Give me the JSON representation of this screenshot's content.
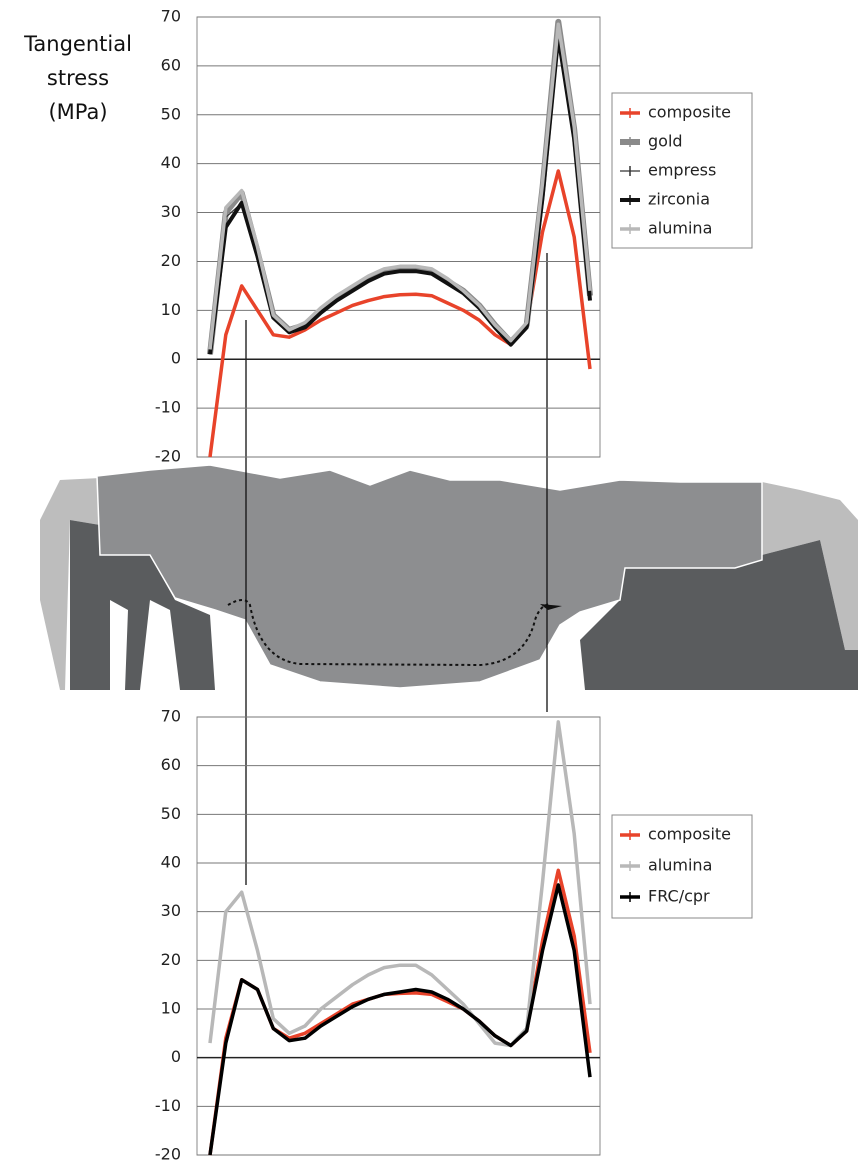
{
  "chart_data": [
    {
      "type": "line",
      "ylabel": [
        "Tangential",
        "stress",
        "(MPa)"
      ],
      "categories": [
        null,
        null,
        null,
        null,
        null,
        null,
        null,
        null,
        null,
        null,
        null,
        null,
        null,
        null,
        null,
        null,
        null,
        null,
        null,
        null,
        null,
        null,
        null,
        null,
        null
      ],
      "ylim": [
        -20,
        70
      ],
      "yticks": [
        -20,
        -10,
        0,
        10,
        20,
        30,
        40,
        50,
        60,
        70
      ],
      "grid": true,
      "series": [
        {
          "name": "composite",
          "color": "#e8432a",
          "line_width": 3.5,
          "values": [
            -20,
            5,
            15,
            10,
            5,
            4.5,
            6,
            8,
            9.5,
            11,
            12,
            12.8,
            13.2,
            13.3,
            13,
            11.5,
            10,
            8,
            5,
            3,
            7,
            26,
            38.5,
            25,
            -2
          ]
        },
        {
          "name": "gold",
          "color": "#8a8a8a",
          "line_width": 6,
          "values": [
            1,
            30,
            34,
            22,
            9,
            6,
            7,
            10,
            12.5,
            14.5,
            16.5,
            18,
            18.5,
            18.5,
            18,
            16,
            14,
            11,
            7,
            3.5,
            7,
            35,
            69,
            47,
            13
          ]
        },
        {
          "name": "empress",
          "color": "#333333",
          "line_width": 1.2,
          "values": [
            1,
            29,
            32,
            21,
            8.5,
            5.5,
            7,
            9.8,
            12.2,
            14.2,
            16.2,
            17.7,
            18.2,
            18.2,
            17.7,
            15.7,
            13.7,
            10.7,
            6.8,
            3.2,
            6.8,
            34,
            68,
            46,
            12.5
          ]
        },
        {
          "name": "zirconia",
          "color": "#111111",
          "line_width": 4,
          "values": [
            1,
            27,
            32,
            21,
            8.5,
            5.5,
            6.5,
            9.5,
            12,
            14,
            16,
            17.5,
            18,
            18,
            17.5,
            15.5,
            13.5,
            10.5,
            6.5,
            3,
            6.5,
            33,
            66,
            45,
            12
          ]
        },
        {
          "name": "alumina",
          "color": "#b8b8b8",
          "line_width": 3.5,
          "values": [
            2,
            31,
            34.5,
            23,
            9,
            6,
            7.5,
            10.5,
            13,
            15,
            17,
            18.5,
            19,
            19,
            18.5,
            16.5,
            14,
            11,
            7,
            3.8,
            7.5,
            36,
            68.5,
            47.5,
            14
          ]
        }
      ],
      "legend": "right"
    },
    {
      "type": "line",
      "categories": [
        null,
        null,
        null,
        null,
        null,
        null,
        null,
        null,
        null,
        null,
        null,
        null,
        null,
        null,
        null,
        null,
        null,
        null,
        null,
        null,
        null,
        null,
        null,
        null,
        null
      ],
      "ylim": [
        -20,
        70
      ],
      "yticks": [
        -20,
        -10,
        0,
        10,
        20,
        30,
        40,
        50,
        60,
        70
      ],
      "grid": true,
      "series": [
        {
          "name": "composite",
          "color": "#e8432a",
          "line_width": 3.5,
          "values": [
            -20,
            4,
            16,
            14,
            6,
            4,
            5,
            7,
            9,
            11,
            12,
            13,
            13.2,
            13.3,
            13,
            11.5,
            10,
            7.5,
            4.5,
            2.5,
            5.5,
            24,
            38.5,
            25,
            1
          ]
        },
        {
          "name": "alumina",
          "color": "#b8b8b8",
          "line_width": 3.5,
          "values": [
            3,
            30,
            34,
            22,
            8,
            5,
            6.5,
            10,
            12.5,
            15,
            17,
            18.5,
            19,
            19,
            17,
            14,
            11,
            7,
            3,
            2.5,
            6,
            36,
            69,
            46,
            11
          ]
        },
        {
          "name": "FRC/cpr",
          "color": "#000000",
          "line_width": 3.5,
          "values": [
            -20,
            3,
            16,
            14,
            6,
            3.5,
            4,
            6.5,
            8.5,
            10.5,
            12,
            13,
            13.5,
            14,
            13.5,
            12,
            10,
            7.5,
            4.5,
            2.5,
            5.5,
            22,
            35.5,
            22,
            -4
          ]
        }
      ],
      "legend": "right"
    }
  ]
}
